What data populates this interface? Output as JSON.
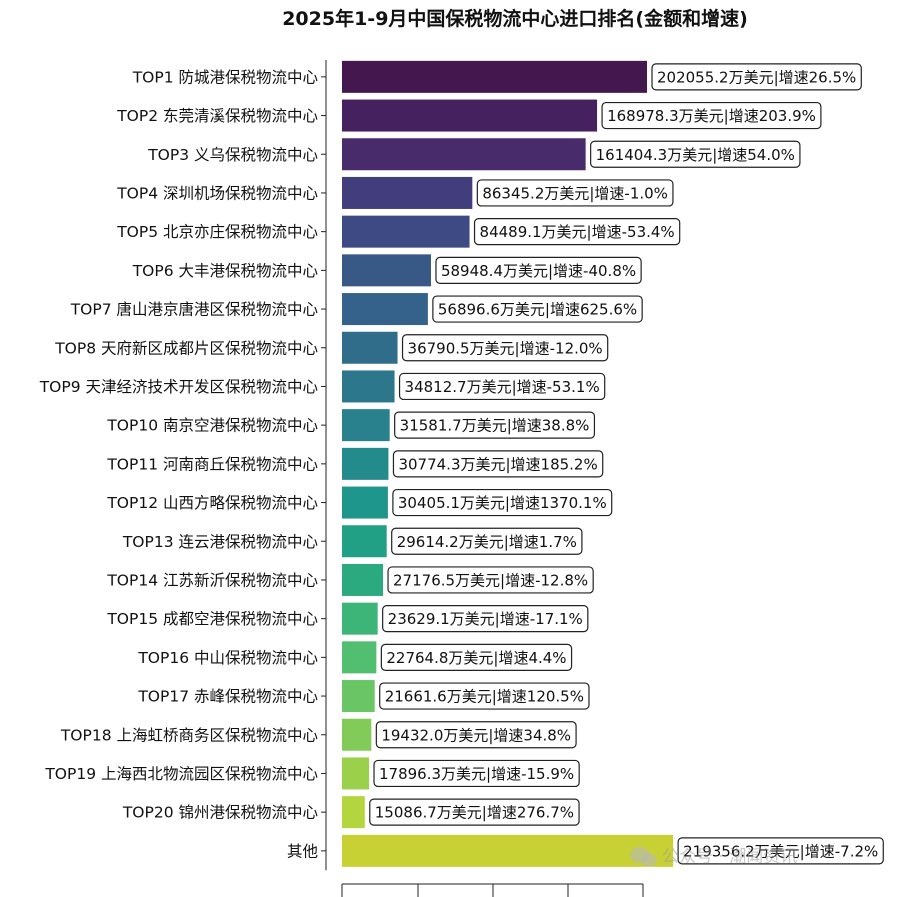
{
  "chart_data": {
    "type": "bar",
    "orientation": "horizontal",
    "title": "2025年1-9月中国保税物流中心进口排名(金额和增速)",
    "xlabel": "",
    "ylabel": "",
    "xlim": [
      0,
      400000
    ],
    "grid": false,
    "legend": "none",
    "categories": [
      "TOP1  防城港保税物流中心",
      "TOP2  东莞清溪保税物流中心",
      "TOP3  义乌保税物流中心",
      "TOP4  深圳机场保税物流中心",
      "TOP5  北京亦庄保税物流中心",
      "TOP6  大丰港保税物流中心",
      "TOP7  唐山港京唐港区保税物流中心",
      "TOP8  天府新区成都片区保税物流中心",
      "TOP9  天津经济技术开发区保税物流中心",
      "TOP10  南京空港保税物流中心",
      "TOP11  河南商丘保税物流中心",
      "TOP12  山西方略保税物流中心",
      "TOP13  连云港保税物流中心",
      "TOP14  江苏新沂保税物流中心",
      "TOP15  成都空港保税物流中心",
      "TOP16  中山保税物流中心",
      "TOP17  赤峰保税物流中心",
      "TOP18  上海虹桥商务区保税物流中心",
      "TOP19  上海西北物流园区保税物流中心",
      "TOP20  锦州港保税物流中心",
      "其他"
    ],
    "values": [
      202055.2,
      168978.3,
      161404.3,
      86345.2,
      84489.1,
      58948.4,
      56896.6,
      36790.5,
      34812.7,
      31581.7,
      30774.3,
      30405.1,
      29614.2,
      27176.5,
      23629.1,
      22764.8,
      21661.6,
      19432.0,
      17896.3,
      15086.7,
      219356.2
    ],
    "growth": [
      "26.5%",
      "203.9%",
      "54.0%",
      "-1.0%",
      "-53.4%",
      "-40.8%",
      "625.6%",
      "-12.0%",
      "-53.1%",
      "38.8%",
      "185.2%",
      "1370.1%",
      "1.7%",
      "-12.8%",
      "-17.1%",
      "4.4%",
      "120.5%",
      "34.8%",
      "-15.9%",
      "276.7%",
      "-7.2%"
    ],
    "data_labels": [
      "202055.2万美元|增速26.5%",
      "168978.3万美元|增速203.9%",
      "161404.3万美元|增速54.0%",
      "86345.2万美元|增速-1.0%",
      "84489.1万美元|增速-53.4%",
      "58948.4万美元|增速-40.8%",
      "56896.6万美元|增速625.6%",
      "36790.5万美元|增速-12.0%",
      "34812.7万美元|增速-53.1%",
      "31581.7万美元|增速38.8%",
      "30774.3万美元|增速185.2%",
      "30405.1万美元|增速1370.1%",
      "29614.2万美元|增速1.7%",
      "27176.5万美元|增速-12.8%",
      "23629.1万美元|增速-17.1%",
      "22764.8万美元|增速4.4%",
      "21661.6万美元|增速120.5%",
      "19432.0万美元|增速34.8%",
      "17896.3万美元|增速-15.9%",
      "15086.7万美元|增速276.7%",
      "219356.2万美元|增速-7.2%"
    ],
    "colors": [
      "#44174f",
      "#46215f",
      "#472b6b",
      "#423d7c",
      "#3e4a83",
      "#385886",
      "#35628a",
      "#2f6d8b",
      "#2c778c",
      "#28818d",
      "#248b8c",
      "#1f968b",
      "#21a086",
      "#2baa80",
      "#3db478",
      "#52be6f",
      "#6ac565",
      "#83cb58",
      "#9bd14a",
      "#b3d53d",
      "#c8d134"
    ]
  },
  "watermark": {
    "icon": "wechat-icon",
    "text": "公众号 · 潮闻资讯"
  }
}
